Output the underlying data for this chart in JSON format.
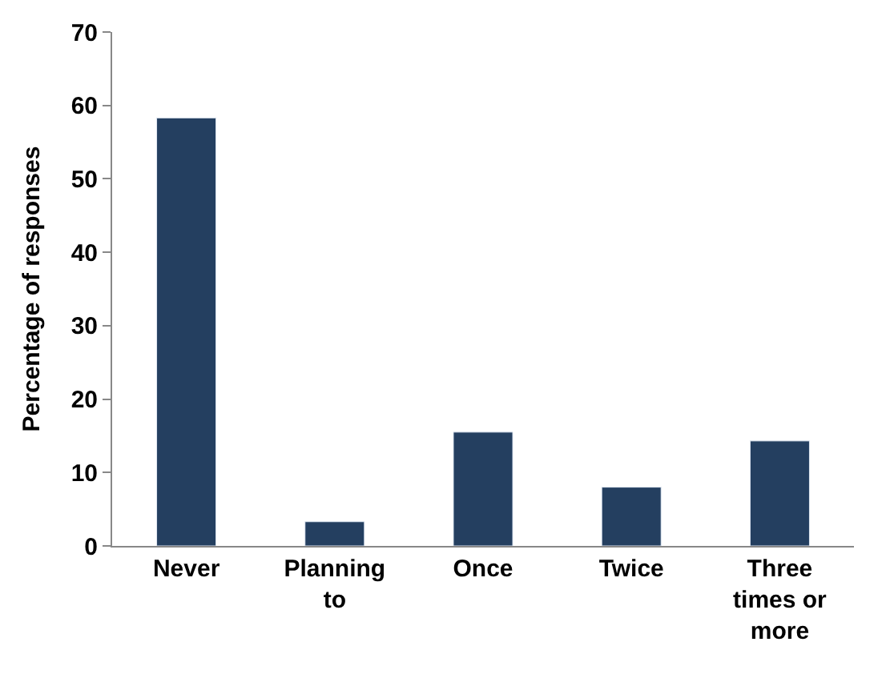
{
  "chart_data": {
    "type": "bar",
    "ylabel": "Percentage of responses",
    "categories": [
      "Never",
      "Planning to",
      "Once",
      "Twice",
      "Three times or more"
    ],
    "values": [
      58.3,
      3.3,
      15.5,
      8.0,
      14.3
    ],
    "color": "#243f60",
    "ylim": [
      0,
      70
    ],
    "yticks": [
      0,
      10,
      20,
      30,
      40,
      50,
      60,
      70
    ],
    "legend": false
  }
}
